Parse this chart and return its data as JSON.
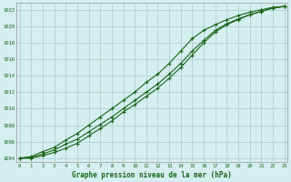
{
  "title": "Graphe pression niveau de la mer (hPa)",
  "x_hours": [
    0,
    1,
    2,
    3,
    4,
    5,
    6,
    7,
    8,
    9,
    10,
    11,
    12,
    13,
    14,
    15,
    16,
    17,
    18,
    19,
    20,
    21,
    22,
    23
  ],
  "line_top": [
    1004.0,
    1004.2,
    1004.8,
    1005.3,
    1006.2,
    1007.0,
    1008.0,
    1009.0,
    1010.0,
    1011.0,
    1012.0,
    1013.2,
    1014.2,
    1015.5,
    1017.0,
    1018.5,
    1019.5,
    1020.2,
    1020.8,
    1021.3,
    1021.7,
    1022.0,
    1022.3,
    1022.4
  ],
  "line_mid": [
    1004.0,
    1004.1,
    1004.5,
    1005.0,
    1005.7,
    1006.3,
    1007.2,
    1008.1,
    1009.0,
    1010.0,
    1011.0,
    1012.0,
    1013.0,
    1014.2,
    1015.5,
    1017.0,
    1018.3,
    1019.5,
    1020.3,
    1020.9,
    1021.4,
    1021.8,
    1022.2,
    1022.4
  ],
  "line_bot": [
    1004.0,
    1004.0,
    1004.3,
    1004.7,
    1005.2,
    1005.8,
    1006.7,
    1007.6,
    1008.5,
    1009.6,
    1010.5,
    1011.5,
    1012.5,
    1013.7,
    1015.0,
    1016.5,
    1018.0,
    1019.3,
    1020.2,
    1020.8,
    1021.4,
    1021.8,
    1022.2,
    1022.4
  ],
  "ylim": [
    1003.5,
    1022.8
  ],
  "yticks": [
    1004,
    1006,
    1008,
    1010,
    1012,
    1014,
    1016,
    1018,
    1020,
    1022
  ],
  "xticks": [
    0,
    1,
    2,
    3,
    4,
    5,
    6,
    7,
    8,
    9,
    10,
    11,
    12,
    13,
    14,
    15,
    16,
    17,
    18,
    19,
    20,
    21,
    22,
    23
  ],
  "line_color": "#1a6618",
  "bg_color": "#d5eef0",
  "grid_color": "#aaccd0",
  "title_color": "#1a6618",
  "marker": "+"
}
